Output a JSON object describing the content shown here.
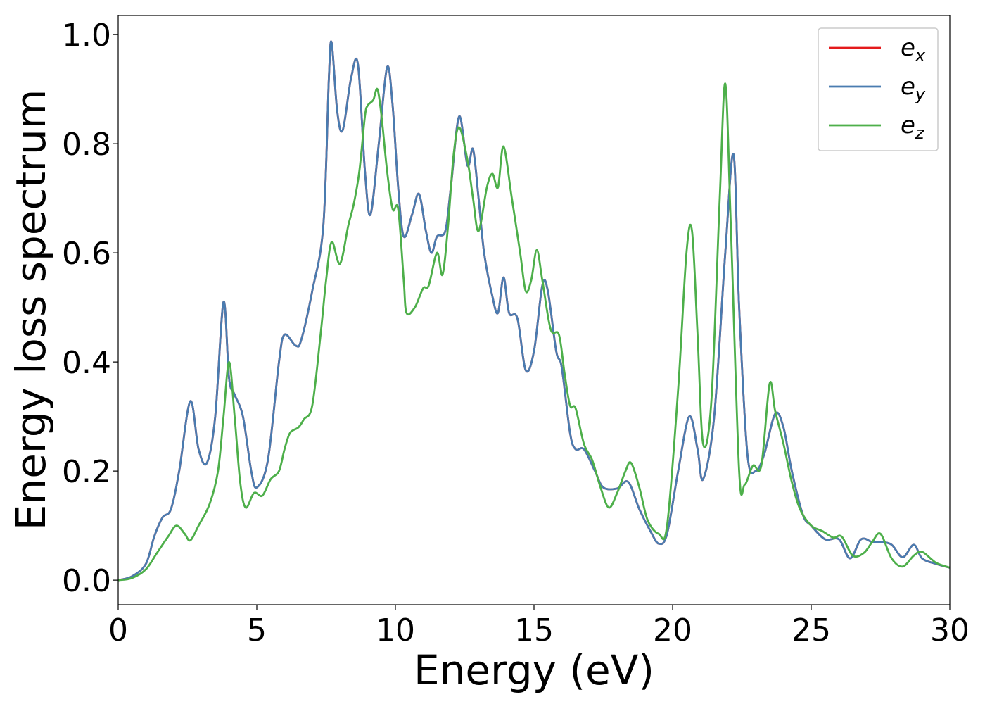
{
  "chart_data": {
    "type": "line",
    "title": "",
    "xlabel": "Energy (eV)",
    "ylabel": "Energy loss spectrum",
    "xlim": [
      0,
      30
    ],
    "ylim": [
      -0.045,
      1.035
    ],
    "xticks": [
      0,
      5,
      10,
      15,
      20,
      25,
      30
    ],
    "xtick_labels": [
      "0",
      "5",
      "10",
      "15",
      "20",
      "25",
      "30"
    ],
    "yticks": [
      0.0,
      0.2,
      0.4,
      0.6,
      0.8,
      1.0
    ],
    "ytick_labels": [
      "0.0",
      "0.2",
      "0.4",
      "0.6",
      "0.8",
      "1.0"
    ],
    "grid": false,
    "legend_position": "top-right",
    "series": [
      {
        "name": "e_x",
        "label_main": "e",
        "label_sub": "x",
        "color": "#e41a1c",
        "points": [
          [
            0,
            0
          ],
          [
            0.5,
            0.007
          ],
          [
            1.0,
            0.03
          ],
          [
            1.3,
            0.08
          ],
          [
            1.6,
            0.115
          ],
          [
            1.9,
            0.13
          ],
          [
            2.2,
            0.2
          ],
          [
            2.6,
            0.328
          ],
          [
            2.9,
            0.24
          ],
          [
            3.2,
            0.215
          ],
          [
            3.5,
            0.3
          ],
          [
            3.8,
            0.51
          ],
          [
            4.0,
            0.37
          ],
          [
            4.2,
            0.34
          ],
          [
            4.5,
            0.3
          ],
          [
            4.8,
            0.2
          ],
          [
            5.0,
            0.17
          ],
          [
            5.4,
            0.22
          ],
          [
            5.8,
            0.4
          ],
          [
            6.0,
            0.45
          ],
          [
            6.4,
            0.43
          ],
          [
            6.6,
            0.44
          ],
          [
            7.0,
            0.53
          ],
          [
            7.4,
            0.65
          ],
          [
            7.6,
            0.92
          ],
          [
            7.7,
            0.985
          ],
          [
            7.9,
            0.86
          ],
          [
            8.1,
            0.825
          ],
          [
            8.4,
            0.92
          ],
          [
            8.65,
            0.945
          ],
          [
            8.9,
            0.75
          ],
          [
            9.1,
            0.67
          ],
          [
            9.4,
            0.8
          ],
          [
            9.7,
            0.94
          ],
          [
            9.9,
            0.87
          ],
          [
            10.1,
            0.72
          ],
          [
            10.3,
            0.63
          ],
          [
            10.6,
            0.67
          ],
          [
            10.85,
            0.708
          ],
          [
            11.1,
            0.64
          ],
          [
            11.3,
            0.6
          ],
          [
            11.5,
            0.63
          ],
          [
            11.8,
            0.64
          ],
          [
            12.0,
            0.72
          ],
          [
            12.3,
            0.85
          ],
          [
            12.6,
            0.76
          ],
          [
            12.8,
            0.79
          ],
          [
            13.0,
            0.7
          ],
          [
            13.2,
            0.6
          ],
          [
            13.5,
            0.52
          ],
          [
            13.7,
            0.49
          ],
          [
            13.9,
            0.555
          ],
          [
            14.1,
            0.49
          ],
          [
            14.4,
            0.48
          ],
          [
            14.7,
            0.385
          ],
          [
            15.0,
            0.42
          ],
          [
            15.3,
            0.54
          ],
          [
            15.5,
            0.53
          ],
          [
            15.8,
            0.42
          ],
          [
            16.0,
            0.39
          ],
          [
            16.3,
            0.27
          ],
          [
            16.5,
            0.24
          ],
          [
            16.8,
            0.24
          ],
          [
            17.2,
            0.2
          ],
          [
            17.5,
            0.17
          ],
          [
            18.0,
            0.168
          ],
          [
            18.4,
            0.18
          ],
          [
            18.8,
            0.13
          ],
          [
            19.2,
            0.09
          ],
          [
            19.5,
            0.067
          ],
          [
            19.8,
            0.085
          ],
          [
            20.2,
            0.2
          ],
          [
            20.6,
            0.3
          ],
          [
            20.9,
            0.24
          ],
          [
            21.1,
            0.185
          ],
          [
            21.5,
            0.3
          ],
          [
            21.9,
            0.6
          ],
          [
            22.2,
            0.78
          ],
          [
            22.4,
            0.5
          ],
          [
            22.7,
            0.23
          ],
          [
            23.0,
            0.2
          ],
          [
            23.3,
            0.23
          ],
          [
            23.7,
            0.305
          ],
          [
            24.0,
            0.28
          ],
          [
            24.3,
            0.2
          ],
          [
            24.7,
            0.12
          ],
          [
            25.0,
            0.1
          ],
          [
            25.5,
            0.075
          ],
          [
            26.0,
            0.075
          ],
          [
            26.4,
            0.04
          ],
          [
            26.8,
            0.075
          ],
          [
            27.2,
            0.07
          ],
          [
            27.5,
            0.07
          ],
          [
            27.9,
            0.065
          ],
          [
            28.3,
            0.042
          ],
          [
            28.7,
            0.065
          ],
          [
            29.0,
            0.04
          ],
          [
            29.5,
            0.03
          ],
          [
            30,
            0.023
          ]
        ]
      },
      {
        "name": "e_y",
        "label_main": "e",
        "label_sub": "y",
        "color": "#4a7cb0",
        "points": [
          [
            0,
            0
          ],
          [
            0.5,
            0.007
          ],
          [
            1.0,
            0.03
          ],
          [
            1.3,
            0.08
          ],
          [
            1.6,
            0.115
          ],
          [
            1.9,
            0.13
          ],
          [
            2.2,
            0.2
          ],
          [
            2.6,
            0.328
          ],
          [
            2.9,
            0.24
          ],
          [
            3.2,
            0.215
          ],
          [
            3.5,
            0.3
          ],
          [
            3.8,
            0.51
          ],
          [
            4.0,
            0.37
          ],
          [
            4.2,
            0.34
          ],
          [
            4.5,
            0.3
          ],
          [
            4.8,
            0.2
          ],
          [
            5.0,
            0.17
          ],
          [
            5.4,
            0.22
          ],
          [
            5.8,
            0.4
          ],
          [
            6.0,
            0.45
          ],
          [
            6.4,
            0.43
          ],
          [
            6.6,
            0.44
          ],
          [
            7.0,
            0.53
          ],
          [
            7.4,
            0.65
          ],
          [
            7.6,
            0.92
          ],
          [
            7.7,
            0.985
          ],
          [
            7.9,
            0.86
          ],
          [
            8.1,
            0.825
          ],
          [
            8.4,
            0.92
          ],
          [
            8.65,
            0.945
          ],
          [
            8.9,
            0.75
          ],
          [
            9.1,
            0.67
          ],
          [
            9.4,
            0.8
          ],
          [
            9.7,
            0.94
          ],
          [
            9.9,
            0.87
          ],
          [
            10.1,
            0.72
          ],
          [
            10.3,
            0.63
          ],
          [
            10.6,
            0.67
          ],
          [
            10.85,
            0.708
          ],
          [
            11.1,
            0.64
          ],
          [
            11.3,
            0.6
          ],
          [
            11.5,
            0.63
          ],
          [
            11.8,
            0.64
          ],
          [
            12.0,
            0.72
          ],
          [
            12.3,
            0.85
          ],
          [
            12.6,
            0.76
          ],
          [
            12.8,
            0.79
          ],
          [
            13.0,
            0.7
          ],
          [
            13.2,
            0.6
          ],
          [
            13.5,
            0.52
          ],
          [
            13.7,
            0.49
          ],
          [
            13.9,
            0.555
          ],
          [
            14.1,
            0.49
          ],
          [
            14.4,
            0.48
          ],
          [
            14.7,
            0.385
          ],
          [
            15.0,
            0.42
          ],
          [
            15.3,
            0.54
          ],
          [
            15.5,
            0.53
          ],
          [
            15.8,
            0.42
          ],
          [
            16.0,
            0.39
          ],
          [
            16.3,
            0.27
          ],
          [
            16.5,
            0.24
          ],
          [
            16.8,
            0.24
          ],
          [
            17.2,
            0.2
          ],
          [
            17.5,
            0.17
          ],
          [
            18.0,
            0.168
          ],
          [
            18.4,
            0.18
          ],
          [
            18.8,
            0.13
          ],
          [
            19.2,
            0.09
          ],
          [
            19.5,
            0.067
          ],
          [
            19.8,
            0.085
          ],
          [
            20.2,
            0.2
          ],
          [
            20.6,
            0.3
          ],
          [
            20.9,
            0.24
          ],
          [
            21.1,
            0.185
          ],
          [
            21.5,
            0.3
          ],
          [
            21.9,
            0.6
          ],
          [
            22.2,
            0.78
          ],
          [
            22.4,
            0.5
          ],
          [
            22.7,
            0.23
          ],
          [
            23.0,
            0.2
          ],
          [
            23.3,
            0.23
          ],
          [
            23.7,
            0.305
          ],
          [
            24.0,
            0.28
          ],
          [
            24.3,
            0.2
          ],
          [
            24.7,
            0.12
          ],
          [
            25.0,
            0.1
          ],
          [
            25.5,
            0.075
          ],
          [
            26.0,
            0.075
          ],
          [
            26.4,
            0.04
          ],
          [
            26.8,
            0.075
          ],
          [
            27.2,
            0.07
          ],
          [
            27.5,
            0.07
          ],
          [
            27.9,
            0.065
          ],
          [
            28.3,
            0.042
          ],
          [
            28.7,
            0.065
          ],
          [
            29.0,
            0.04
          ],
          [
            29.5,
            0.03
          ],
          [
            30,
            0.023
          ]
        ]
      },
      {
        "name": "e_z",
        "label_main": "e",
        "label_sub": "z",
        "color": "#4daf4a",
        "points": [
          [
            0,
            0
          ],
          [
            0.5,
            0.004
          ],
          [
            1.0,
            0.02
          ],
          [
            1.4,
            0.05
          ],
          [
            1.8,
            0.08
          ],
          [
            2.1,
            0.1
          ],
          [
            2.4,
            0.085
          ],
          [
            2.6,
            0.073
          ],
          [
            2.9,
            0.1
          ],
          [
            3.3,
            0.14
          ],
          [
            3.6,
            0.2
          ],
          [
            3.8,
            0.3
          ],
          [
            4.0,
            0.4
          ],
          [
            4.2,
            0.3
          ],
          [
            4.4,
            0.18
          ],
          [
            4.6,
            0.133
          ],
          [
            4.9,
            0.16
          ],
          [
            5.2,
            0.155
          ],
          [
            5.5,
            0.185
          ],
          [
            5.8,
            0.2
          ],
          [
            6.0,
            0.24
          ],
          [
            6.2,
            0.27
          ],
          [
            6.5,
            0.28
          ],
          [
            6.7,
            0.295
          ],
          [
            7.0,
            0.32
          ],
          [
            7.3,
            0.45
          ],
          [
            7.5,
            0.55
          ],
          [
            7.7,
            0.62
          ],
          [
            8.0,
            0.58
          ],
          [
            8.3,
            0.65
          ],
          [
            8.5,
            0.69
          ],
          [
            8.7,
            0.75
          ],
          [
            8.9,
            0.85
          ],
          [
            9.0,
            0.87
          ],
          [
            9.2,
            0.88
          ],
          [
            9.35,
            0.9
          ],
          [
            9.5,
            0.85
          ],
          [
            9.7,
            0.75
          ],
          [
            9.9,
            0.68
          ],
          [
            10.1,
            0.68
          ],
          [
            10.3,
            0.55
          ],
          [
            10.4,
            0.49
          ],
          [
            10.7,
            0.5
          ],
          [
            11.0,
            0.535
          ],
          [
            11.2,
            0.54
          ],
          [
            11.5,
            0.6
          ],
          [
            11.7,
            0.56
          ],
          [
            11.9,
            0.65
          ],
          [
            12.1,
            0.78
          ],
          [
            12.3,
            0.83
          ],
          [
            12.6,
            0.77
          ],
          [
            12.8,
            0.7
          ],
          [
            13.0,
            0.64
          ],
          [
            13.3,
            0.72
          ],
          [
            13.5,
            0.745
          ],
          [
            13.7,
            0.72
          ],
          [
            13.9,
            0.795
          ],
          [
            14.2,
            0.7
          ],
          [
            14.5,
            0.6
          ],
          [
            14.7,
            0.53
          ],
          [
            14.9,
            0.55
          ],
          [
            15.1,
            0.605
          ],
          [
            15.3,
            0.55
          ],
          [
            15.6,
            0.46
          ],
          [
            15.9,
            0.45
          ],
          [
            16.1,
            0.38
          ],
          [
            16.3,
            0.32
          ],
          [
            16.5,
            0.315
          ],
          [
            16.8,
            0.25
          ],
          [
            17.1,
            0.22
          ],
          [
            17.4,
            0.17
          ],
          [
            17.7,
            0.133
          ],
          [
            18.0,
            0.16
          ],
          [
            18.3,
            0.2
          ],
          [
            18.5,
            0.215
          ],
          [
            18.8,
            0.17
          ],
          [
            19.1,
            0.11
          ],
          [
            19.5,
            0.085
          ],
          [
            19.8,
            0.1
          ],
          [
            20.2,
            0.35
          ],
          [
            20.5,
            0.6
          ],
          [
            20.7,
            0.64
          ],
          [
            20.9,
            0.45
          ],
          [
            21.1,
            0.25
          ],
          [
            21.4,
            0.33
          ],
          [
            21.7,
            0.7
          ],
          [
            21.9,
            0.91
          ],
          [
            22.1,
            0.65
          ],
          [
            22.4,
            0.2
          ],
          [
            22.6,
            0.175
          ],
          [
            22.9,
            0.21
          ],
          [
            23.2,
            0.21
          ],
          [
            23.5,
            0.36
          ],
          [
            23.7,
            0.31
          ],
          [
            24.0,
            0.25
          ],
          [
            24.3,
            0.18
          ],
          [
            24.6,
            0.13
          ],
          [
            25.0,
            0.1
          ],
          [
            25.4,
            0.09
          ],
          [
            25.8,
            0.078
          ],
          [
            26.1,
            0.08
          ],
          [
            26.5,
            0.045
          ],
          [
            26.9,
            0.05
          ],
          [
            27.2,
            0.07
          ],
          [
            27.5,
            0.085
          ],
          [
            27.9,
            0.04
          ],
          [
            28.3,
            0.025
          ],
          [
            28.7,
            0.045
          ],
          [
            29.0,
            0.052
          ],
          [
            29.5,
            0.032
          ],
          [
            30,
            0.023
          ]
        ]
      }
    ]
  }
}
